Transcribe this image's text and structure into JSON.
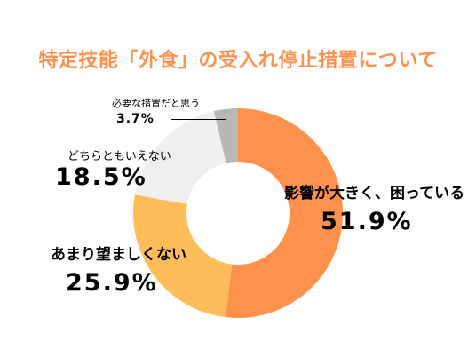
{
  "chart_data": {
    "type": "pie",
    "title": "特定技能「外食」の受入れ停止措置について",
    "categories": [
      "影響が大きく、困っている",
      "あまり望ましくない",
      "どちらともいえない",
      "必要な措置だと思う"
    ],
    "values": [
      51.9,
      25.9,
      18.5,
      3.7
    ],
    "value_labels": [
      "51.9%",
      "25.9%",
      "18.5%",
      "3.7%"
    ],
    "colors": [
      "#ff914d",
      "#ffbd59",
      "#efefef",
      "#b7b7b7"
    ],
    "donut": true,
    "legend": "none",
    "grid": false
  }
}
